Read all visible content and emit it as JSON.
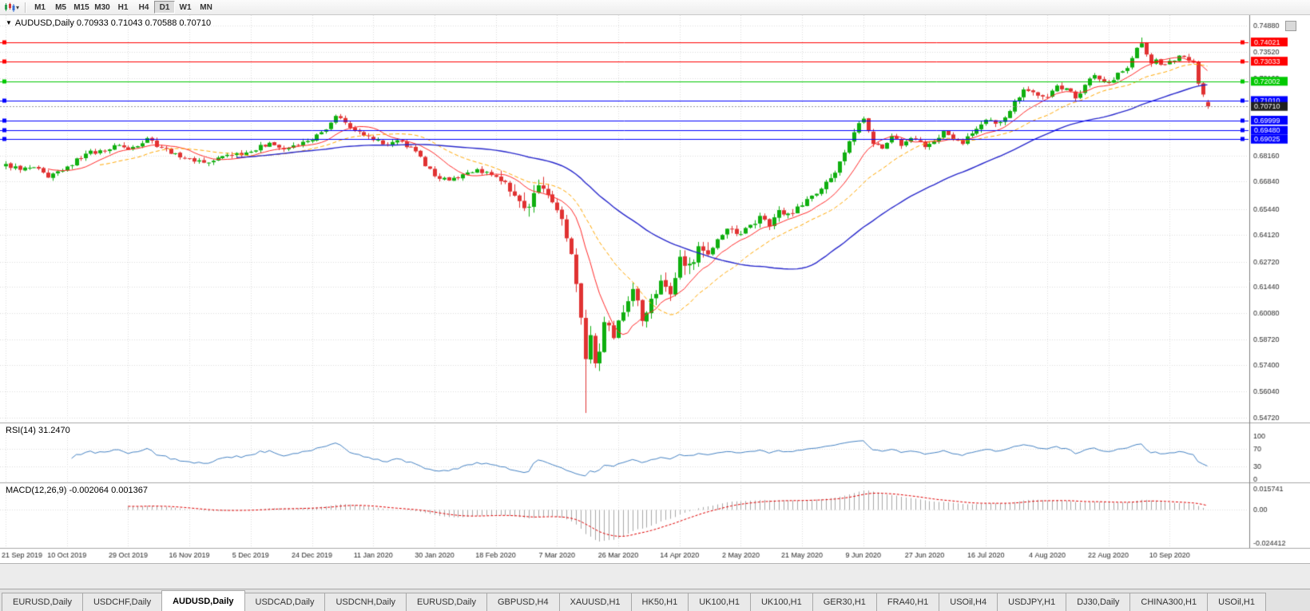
{
  "toolbar": {
    "timeframes": [
      {
        "label": "M1",
        "active": false
      },
      {
        "label": "M5",
        "active": false
      },
      {
        "label": "M15",
        "active": false
      },
      {
        "label": "M30",
        "active": false
      },
      {
        "label": "H1",
        "active": false
      },
      {
        "label": "H4",
        "active": false
      },
      {
        "label": "D1",
        "active": true
      },
      {
        "label": "W1",
        "active": false
      },
      {
        "label": "MN",
        "active": false
      }
    ]
  },
  "window": {
    "collapse_arrow": "▼",
    "chart_title": "AUDUSD,Daily 0.70933 0.71043 0.70588 0.70710"
  },
  "tabs": [
    {
      "label": "EURUSD,Daily",
      "active": false
    },
    {
      "label": "USDCHF,Daily",
      "active": false
    },
    {
      "label": "AUDUSD,Daily",
      "active": true
    },
    {
      "label": "USDCAD,Daily",
      "active": false
    },
    {
      "label": "USDCNH,Daily",
      "active": false
    },
    {
      "label": "EURUSD,Daily",
      "active": false
    },
    {
      "label": "GBPUSD,H4",
      "active": false
    },
    {
      "label": "XAUUSD,H1",
      "active": false
    },
    {
      "label": "HK50,H1",
      "active": false
    },
    {
      "label": "UK100,H1",
      "active": false
    },
    {
      "label": "UK100,H1",
      "active": false
    },
    {
      "label": "GER30,H1",
      "active": false
    },
    {
      "label": "FRA40,H1",
      "active": false
    },
    {
      "label": "USOil,H4",
      "active": false
    },
    {
      "label": "USDJPY,H1",
      "active": false
    },
    {
      "label": "DJ30,Daily",
      "active": false
    },
    {
      "label": "CHINA300,H1",
      "active": false
    },
    {
      "label": "USOil,H1",
      "active": false
    }
  ],
  "chart_data": {
    "type": "candlestick",
    "symbol": "AUDUSD",
    "timeframe": "Daily",
    "title": "AUDUSD,Daily",
    "ohlc_last": {
      "open": 0.70933,
      "high": 0.71043,
      "low": 0.70588,
      "close": 0.7071
    },
    "num_candles": 256,
    "x_tick_every": 13,
    "x_tick_labels": [
      "21 Sep 2019",
      "10 Oct 2019",
      "29 Oct 2019",
      "16 Nov 2019",
      "5 Dec 2019",
      "24 Dec 2019",
      "11 Jan 2020",
      "30 Jan 2020",
      "18 Feb 2020",
      "7 Mar 2020",
      "26 Mar 2020",
      "14 Apr 2020",
      "2 May 2020",
      "21 May 2020",
      "9 Jun 2020",
      "27 Jun 2020",
      "16 Jul 2020",
      "4 Aug 2020",
      "22 Aug 2020",
      "10 Sep 2020"
    ],
    "price_axis": {
      "min": 0.545,
      "max": 0.754,
      "tick_labels": [
        "0.74880",
        "0.73520",
        "0.72160",
        "0.68160",
        "0.66840",
        "0.65440",
        "0.64120",
        "0.62720",
        "0.61440",
        "0.60080",
        "0.58720",
        "0.57400",
        "0.56040",
        "0.54720"
      ]
    },
    "hlines": [
      {
        "price": 0.74021,
        "label": "0.74021",
        "color": "#FF0000"
      },
      {
        "price": 0.73033,
        "label": "0.73033",
        "color": "#FF0000"
      },
      {
        "price": 0.72002,
        "label": "0.72002",
        "color": "#00C800"
      },
      {
        "price": 0.7101,
        "label": "0.71010",
        "color": "#0000FF"
      },
      {
        "price": 0.69999,
        "label": "0.69999",
        "color": "#0000FF"
      },
      {
        "price": 0.6948,
        "label": "0.69480",
        "color": "#0000FF"
      },
      {
        "price": 0.69025,
        "label": "0.69025",
        "color": "#0000FF"
      }
    ],
    "current_price": {
      "value": 0.7071,
      "label": "0.70710",
      "color": "#1f1f1f"
    },
    "waypoints": [
      [
        0,
        0.6775
      ],
      [
        3,
        0.6745
      ],
      [
        6,
        0.6758
      ],
      [
        9,
        0.6705
      ],
      [
        13,
        0.6762
      ],
      [
        17,
        0.6828
      ],
      [
        21,
        0.6843
      ],
      [
        24,
        0.6872
      ],
      [
        26,
        0.6848
      ],
      [
        30,
        0.6908
      ],
      [
        33,
        0.6858
      ],
      [
        36,
        0.683
      ],
      [
        39,
        0.6802
      ],
      [
        43,
        0.6782
      ],
      [
        47,
        0.6822
      ],
      [
        52,
        0.6838
      ],
      [
        56,
        0.6884
      ],
      [
        59,
        0.685
      ],
      [
        62,
        0.6872
      ],
      [
        65,
        0.6898
      ],
      [
        68,
        0.6952
      ],
      [
        70,
        0.7022
      ],
      [
        72,
        0.6988
      ],
      [
        75,
        0.6942
      ],
      [
        78,
        0.6898
      ],
      [
        81,
        0.6872
      ],
      [
        84,
        0.689
      ],
      [
        87,
        0.684
      ],
      [
        91,
        0.6712
      ],
      [
        94,
        0.669
      ],
      [
        97,
        0.6722
      ],
      [
        100,
        0.6748
      ],
      [
        103,
        0.6718
      ],
      [
        106,
        0.6682
      ],
      [
        108,
        0.6612
      ],
      [
        110,
        0.6548
      ],
      [
        112,
        0.6625
      ],
      [
        114,
        0.6648
      ],
      [
        116,
        0.6578
      ],
      [
        118,
        0.6492
      ],
      [
        120,
        0.6312
      ],
      [
        121,
        0.6158
      ],
      [
        122,
        0.5985
      ],
      [
        123,
        0.5772
      ],
      [
        124,
        0.5895
      ],
      [
        125,
        0.575
      ],
      [
        126,
        0.581
      ],
      [
        127,
        0.5962
      ],
      [
        129,
        0.588
      ],
      [
        131,
        0.6012
      ],
      [
        133,
        0.6132
      ],
      [
        135,
        0.5968
      ],
      [
        137,
        0.6082
      ],
      [
        139,
        0.6175
      ],
      [
        141,
        0.6105
      ],
      [
        143,
        0.6298
      ],
      [
        145,
        0.6262
      ],
      [
        147,
        0.6352
      ],
      [
        149,
        0.631
      ],
      [
        151,
        0.6388
      ],
      [
        153,
        0.6442
      ],
      [
        156,
        0.6414
      ],
      [
        158,
        0.6462
      ],
      [
        160,
        0.6508
      ],
      [
        162,
        0.6454
      ],
      [
        164,
        0.6538
      ],
      [
        166,
        0.652
      ],
      [
        169,
        0.6562
      ],
      [
        171,
        0.6612
      ],
      [
        173,
        0.6648
      ],
      [
        175,
        0.6702
      ],
      [
        177,
        0.6788
      ],
      [
        179,
        0.6892
      ],
      [
        181,
        0.6985
      ],
      [
        182,
        0.7008
      ],
      [
        183,
        0.6944
      ],
      [
        184,
        0.6878
      ],
      [
        186,
        0.6854
      ],
      [
        188,
        0.6918
      ],
      [
        190,
        0.6868
      ],
      [
        192,
        0.6908
      ],
      [
        195,
        0.6862
      ],
      [
        197,
        0.6892
      ],
      [
        199,
        0.6944
      ],
      [
        201,
        0.6902
      ],
      [
        203,
        0.6878
      ],
      [
        205,
        0.6932
      ],
      [
        207,
        0.6978
      ],
      [
        208,
        0.7002
      ],
      [
        210,
        0.6982
      ],
      [
        212,
        0.7014
      ],
      [
        214,
        0.7098
      ],
      [
        216,
        0.7158
      ],
      [
        218,
        0.7144
      ],
      [
        220,
        0.7122
      ],
      [
        221,
        0.7118
      ],
      [
        223,
        0.7178
      ],
      [
        225,
        0.7164
      ],
      [
        227,
        0.7112
      ],
      [
        229,
        0.7182
      ],
      [
        231,
        0.7232
      ],
      [
        233,
        0.7198
      ],
      [
        234,
        0.7194
      ],
      [
        236,
        0.7244
      ],
      [
        238,
        0.7268
      ],
      [
        240,
        0.7372
      ],
      [
        241,
        0.7395
      ],
      [
        242,
        0.7338
      ],
      [
        243,
        0.7292
      ],
      [
        244,
        0.7312
      ],
      [
        245,
        0.7285
      ],
      [
        247,
        0.7305
      ],
      [
        249,
        0.7332
      ],
      [
        251,
        0.7306
      ],
      [
        252,
        0.7296
      ],
      [
        253,
        0.7188
      ],
      [
        254,
        0.7132
      ],
      [
        255,
        0.7071
      ]
    ],
    "overrides": [
      {
        "i": 123,
        "low": 0.5495
      },
      {
        "i": 241,
        "high": 0.7425
      },
      {
        "i": 255,
        "o": 0.70933,
        "h": 0.71043,
        "l": 0.70588,
        "c": 0.7071
      }
    ],
    "volatility": [
      {
        "from": 0,
        "to": 104,
        "v": 0.0013
      },
      {
        "from": 105,
        "to": 149,
        "v": 0.0038
      },
      {
        "from": 150,
        "to": 184,
        "v": 0.0018
      },
      {
        "from": 185,
        "to": 255,
        "v": 0.0014
      }
    ],
    "moving_averages": [
      {
        "period": 10,
        "color": "#FF2A2A",
        "dash": [],
        "width": 1
      },
      {
        "period": 21,
        "color": "#FFA800",
        "dash": [
          5,
          3
        ],
        "width": 1
      },
      {
        "period": 50,
        "color": "#2828CC",
        "dash": [],
        "width": 1.4
      }
    ],
    "colors": {
      "bull": "#0FAF0F",
      "bear": "#E03232",
      "grid": "#DCDCDC",
      "axis_text": "#2b2b2b",
      "histogram": "#A8A8A8",
      "macd_signal": "#E00000",
      "rsi_line": "#4683C4"
    },
    "rsi": {
      "label": "RSI(14) 31.2470",
      "period": 14,
      "last": 31.247,
      "axis_labels": [
        "100",
        "70",
        "30",
        "0"
      ],
      "levels": [
        70,
        30
      ]
    },
    "macd": {
      "label": "MACD(12,26,9) -0.002064 0.001367",
      "fast": 12,
      "slow": 26,
      "signal": 9,
      "last_main": -0.002064,
      "last_signal": 0.001367,
      "axis_labels": [
        "0.015741",
        "0.00",
        "-0.024412"
      ],
      "scale_max": 0.0185,
      "scale_min": -0.0262
    }
  }
}
